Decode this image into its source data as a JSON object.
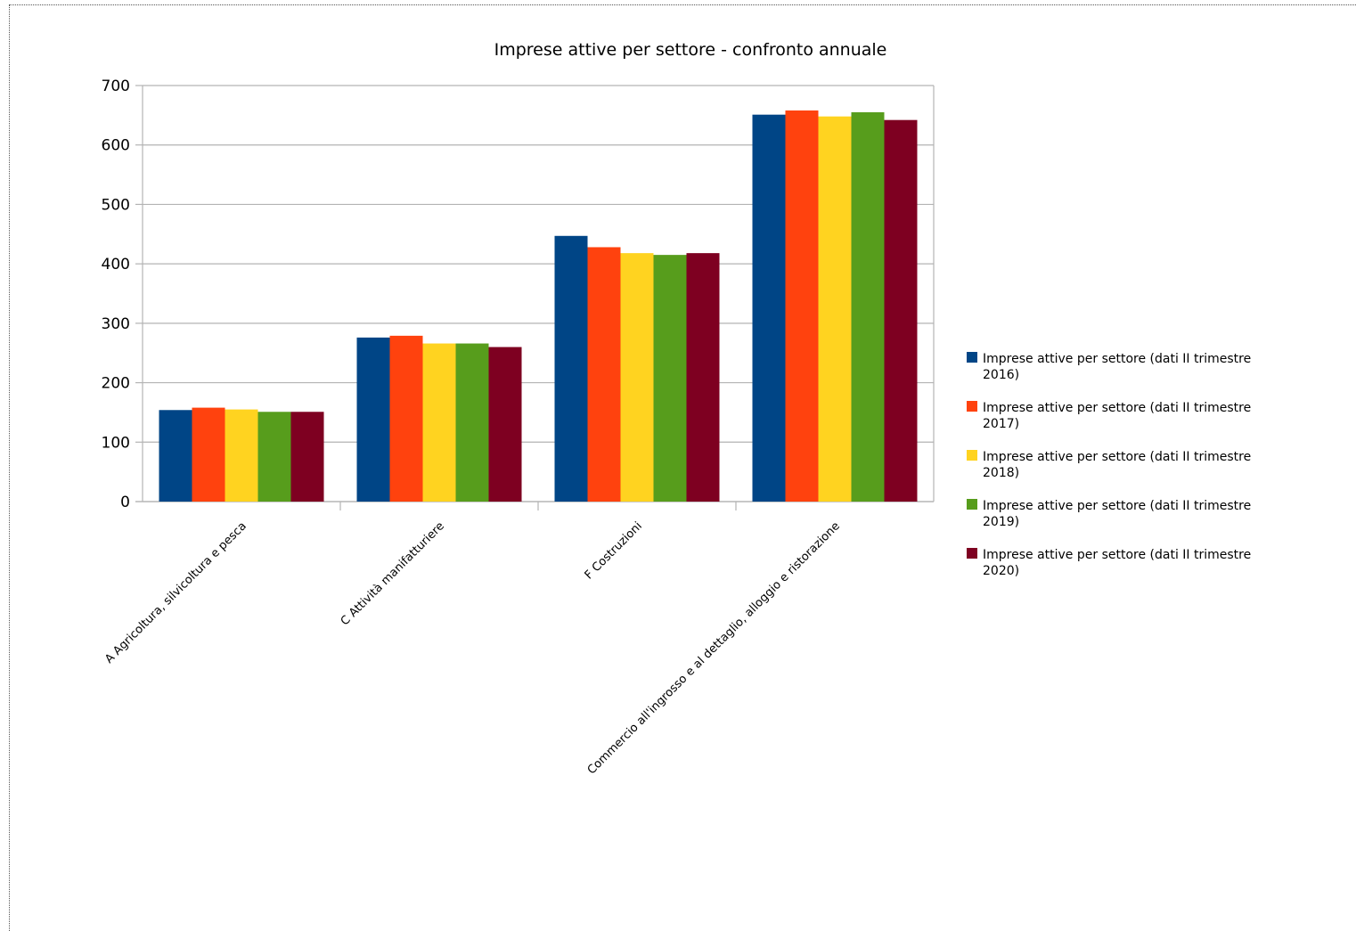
{
  "chart_data": {
    "type": "bar",
    "title": "Imprese attive per settore - confronto annuale",
    "xlabel": "",
    "ylabel": "",
    "ylim": [
      0,
      700
    ],
    "yticks": [
      0,
      100,
      200,
      300,
      400,
      500,
      600,
      700
    ],
    "grid": "horizontal",
    "legend_position": "right",
    "categories": [
      "A Agricoltura, silvicoltura e pesca",
      "C Attività manifatturiere",
      "F Costruzioni",
      "Commercio all'ingrosso e al dettaglio, alloggio e ristorazione"
    ],
    "series": [
      {
        "name": "Imprese attive per settore (dati II trimestre 2016)",
        "color": "#004586",
        "values": [
          154,
          276,
          447,
          651
        ]
      },
      {
        "name": "Imprese attive per settore (dati II trimestre 2017)",
        "color": "#ff420e",
        "values": [
          158,
          279,
          428,
          658
        ]
      },
      {
        "name": "Imprese attive per settore (dati II trimestre 2018)",
        "color": "#ffd320",
        "values": [
          155,
          266,
          418,
          648
        ]
      },
      {
        "name": "Imprese attive per settore (dati II trimestre 2019)",
        "color": "#579d1c",
        "values": [
          151,
          266,
          415,
          655
        ]
      },
      {
        "name": "Imprese attive per settore (dati II trimestre 2020)",
        "color": "#7e0021",
        "values": [
          151,
          260,
          418,
          642
        ]
      }
    ]
  }
}
